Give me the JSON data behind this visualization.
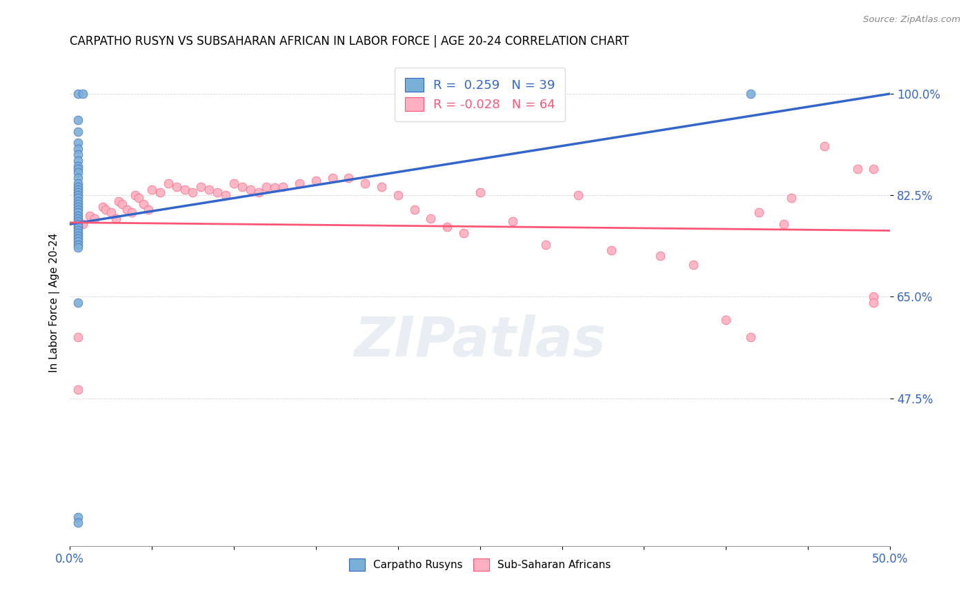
{
  "title": "CARPATHO RUSYN VS SUBSAHARAN AFRICAN IN LABOR FORCE | AGE 20-24 CORRELATION CHART",
  "source": "Source: ZipAtlas.com",
  "ylabel": "In Labor Force | Age 20-24",
  "y_tick_labels": [
    "47.5%",
    "65.0%",
    "82.5%",
    "100.0%"
  ],
  "y_tick_values": [
    0.475,
    0.65,
    0.825,
    1.0
  ],
  "xlim": [
    0.0,
    0.5
  ],
  "ylim": [
    0.22,
    1.06
  ],
  "legend_label1": "Carpatho Rusyns",
  "legend_label2": "Sub-Saharan Africans",
  "R1": 0.259,
  "N1": 39,
  "R2": -0.028,
  "N2": 64,
  "color1": "#7ab0d8",
  "color2": "#ffb0c0",
  "trendline1_color": "#3366cc",
  "trendline2_color": "#ff5577",
  "watermark": "ZIPatlas",
  "trendline1_x": [
    0.0,
    0.5
  ],
  "trendline1_y": [
    0.775,
    1.0
  ],
  "trendline2_x": [
    0.0,
    0.5
  ],
  "trendline2_y": [
    0.778,
    0.764
  ],
  "blue_scatter_x": [
    0.005,
    0.008,
    0.005,
    0.005,
    0.005,
    0.005,
    0.005,
    0.005,
    0.005,
    0.005,
    0.005,
    0.005,
    0.005,
    0.005,
    0.005,
    0.005,
    0.005,
    0.005,
    0.005,
    0.005,
    0.005,
    0.005,
    0.005,
    0.005,
    0.005,
    0.005,
    0.005,
    0.005,
    0.005,
    0.005,
    0.005,
    0.005,
    0.005,
    0.005,
    0.005,
    0.415,
    0.005,
    0.005,
    0.005
  ],
  "blue_scatter_y": [
    1.0,
    1.0,
    0.955,
    0.935,
    0.915,
    0.905,
    0.895,
    0.885,
    0.875,
    0.87,
    0.865,
    0.855,
    0.845,
    0.84,
    0.835,
    0.83,
    0.825,
    0.82,
    0.815,
    0.81,
    0.805,
    0.8,
    0.795,
    0.79,
    0.785,
    0.78,
    0.775,
    0.77,
    0.765,
    0.76,
    0.755,
    0.75,
    0.745,
    0.74,
    0.735,
    1.0,
    0.64,
    0.27,
    0.26
  ],
  "pink_scatter_x": [
    0.005,
    0.008,
    0.012,
    0.015,
    0.02,
    0.022,
    0.025,
    0.028,
    0.03,
    0.032,
    0.035,
    0.038,
    0.04,
    0.042,
    0.045,
    0.048,
    0.05,
    0.055,
    0.06,
    0.065,
    0.07,
    0.075,
    0.08,
    0.085,
    0.09,
    0.095,
    0.1,
    0.105,
    0.11,
    0.115,
    0.12,
    0.125,
    0.13,
    0.14,
    0.15,
    0.16,
    0.17,
    0.18,
    0.19,
    0.2,
    0.21,
    0.22,
    0.23,
    0.24,
    0.25,
    0.27,
    0.29,
    0.31,
    0.33,
    0.36,
    0.38,
    0.4,
    0.415,
    0.42,
    0.435,
    0.44,
    0.46,
    0.48,
    0.49,
    0.49,
    0.49,
    0.005,
    0.005,
    0.005
  ],
  "pink_scatter_y": [
    0.775,
    0.775,
    0.79,
    0.785,
    0.805,
    0.8,
    0.795,
    0.785,
    0.815,
    0.81,
    0.8,
    0.795,
    0.825,
    0.82,
    0.81,
    0.8,
    0.835,
    0.83,
    0.845,
    0.84,
    0.835,
    0.83,
    0.84,
    0.835,
    0.83,
    0.825,
    0.845,
    0.84,
    0.835,
    0.83,
    0.84,
    0.838,
    0.84,
    0.845,
    0.85,
    0.855,
    0.855,
    0.845,
    0.84,
    0.825,
    0.8,
    0.785,
    0.77,
    0.76,
    0.83,
    0.78,
    0.74,
    0.825,
    0.73,
    0.72,
    0.705,
    0.61,
    0.58,
    0.795,
    0.775,
    0.82,
    0.91,
    0.87,
    0.87,
    0.65,
    0.64,
    0.58,
    0.49,
    0.77
  ]
}
